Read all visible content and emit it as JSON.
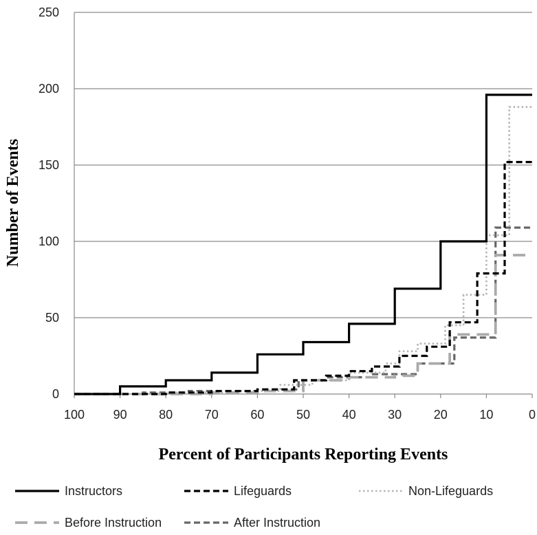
{
  "chart_data": {
    "type": "line",
    "step": true,
    "title": "",
    "xlabel": "Percent of Participants Reporting Events",
    "ylabel": "Number of Events",
    "xlim": [
      100,
      0
    ],
    "x_reversed": true,
    "ylim": [
      0,
      250
    ],
    "x_ticks": [
      100,
      90,
      80,
      70,
      60,
      50,
      40,
      30,
      20,
      10,
      0
    ],
    "y_ticks": [
      0,
      50,
      100,
      150,
      200,
      250
    ],
    "grid": "horizontal",
    "legend_position": "bottom",
    "series": [
      {
        "name": "Instructors",
        "color": "#000000",
        "style": "solid",
        "points": [
          [
            100,
            0
          ],
          [
            90,
            0
          ],
          [
            90,
            5
          ],
          [
            80,
            5
          ],
          [
            80,
            9
          ],
          [
            70,
            9
          ],
          [
            70,
            14
          ],
          [
            60,
            14
          ],
          [
            60,
            26
          ],
          [
            50,
            26
          ],
          [
            50,
            34
          ],
          [
            40,
            34
          ],
          [
            40,
            46
          ],
          [
            30,
            46
          ],
          [
            30,
            69
          ],
          [
            20,
            69
          ],
          [
            20,
            100
          ],
          [
            10,
            100
          ],
          [
            10,
            196
          ],
          [
            0,
            196
          ]
        ]
      },
      {
        "name": "Lifeguards",
        "color": "#000000",
        "style": "dashed",
        "points": [
          [
            100,
            0
          ],
          [
            80,
            0
          ],
          [
            80,
            1
          ],
          [
            70,
            1
          ],
          [
            70,
            2
          ],
          [
            60,
            2
          ],
          [
            60,
            3
          ],
          [
            52,
            3
          ],
          [
            52,
            9
          ],
          [
            45,
            9
          ],
          [
            45,
            12
          ],
          [
            40,
            12
          ],
          [
            40,
            15
          ],
          [
            35,
            15
          ],
          [
            35,
            18
          ],
          [
            29,
            18
          ],
          [
            29,
            25
          ],
          [
            23,
            25
          ],
          [
            23,
            31
          ],
          [
            18,
            31
          ],
          [
            18,
            47
          ],
          [
            12,
            47
          ],
          [
            12,
            79
          ],
          [
            6,
            79
          ],
          [
            6,
            152
          ],
          [
            0,
            152
          ]
        ]
      },
      {
        "name": "Non-Lifeguards",
        "color": "#b4b4b4",
        "style": "dotted",
        "points": [
          [
            100,
            0
          ],
          [
            80,
            0
          ],
          [
            80,
            1
          ],
          [
            65,
            1
          ],
          [
            65,
            2
          ],
          [
            55,
            2
          ],
          [
            55,
            6
          ],
          [
            48,
            6
          ],
          [
            48,
            9
          ],
          [
            40,
            9
          ],
          [
            40,
            14
          ],
          [
            32,
            14
          ],
          [
            32,
            20
          ],
          [
            29,
            20
          ],
          [
            29,
            28
          ],
          [
            25,
            28
          ],
          [
            25,
            33
          ],
          [
            19,
            33
          ],
          [
            19,
            45
          ],
          [
            15,
            45
          ],
          [
            15,
            65
          ],
          [
            10,
            65
          ],
          [
            10,
            104
          ],
          [
            5,
            104
          ],
          [
            5,
            188
          ],
          [
            0,
            188
          ]
        ]
      },
      {
        "name": "Before Instruction",
        "color": "#aaaaaa",
        "style": "longdash",
        "points": [
          [
            100,
            0
          ],
          [
            70,
            0
          ],
          [
            70,
            1
          ],
          [
            60,
            1
          ],
          [
            60,
            2
          ],
          [
            50,
            2
          ],
          [
            50,
            9
          ],
          [
            40,
            9
          ],
          [
            40,
            11
          ],
          [
            30,
            11
          ],
          [
            30,
            12
          ],
          [
            25,
            12
          ],
          [
            25,
            20
          ],
          [
            18,
            20
          ],
          [
            18,
            39
          ],
          [
            8,
            39
          ],
          [
            8,
            91
          ],
          [
            0,
            91
          ]
        ]
      },
      {
        "name": "After Instruction",
        "color": "#666666",
        "style": "dashed",
        "points": [
          [
            100,
            0
          ],
          [
            85,
            0
          ],
          [
            85,
            1
          ],
          [
            75,
            1
          ],
          [
            75,
            2
          ],
          [
            60,
            2
          ],
          [
            60,
            3
          ],
          [
            51,
            3
          ],
          [
            51,
            9
          ],
          [
            45,
            9
          ],
          [
            45,
            11
          ],
          [
            35,
            11
          ],
          [
            35,
            13
          ],
          [
            25,
            13
          ],
          [
            25,
            20
          ],
          [
            17,
            20
          ],
          [
            17,
            37
          ],
          [
            8,
            37
          ],
          [
            8,
            109
          ],
          [
            0,
            109
          ]
        ]
      }
    ]
  }
}
